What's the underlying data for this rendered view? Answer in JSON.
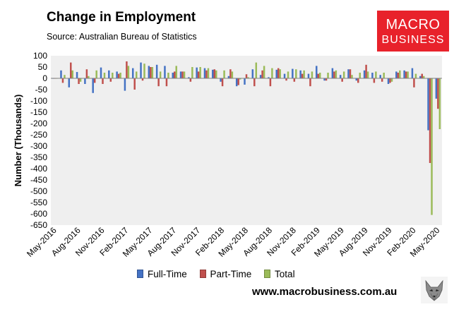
{
  "header": {
    "title": "Change in Employment",
    "subtitle": "Source: Australian Bureau of Statistics"
  },
  "logo": {
    "line1": "MACRO",
    "line2": "BUSINESS"
  },
  "footer": {
    "website": "www.macrobusiness.com.au"
  },
  "colors": {
    "full_time": "#4472c4",
    "part_time": "#c0504d",
    "total": "#9bbb59",
    "plot_bg": "#efefef",
    "brand": "#e8222b"
  },
  "legend": [
    {
      "label": "Full-Time",
      "color": "#4472c4"
    },
    {
      "label": "Part-Time",
      "color": "#c0504d"
    },
    {
      "label": "Total",
      "color": "#9bbb59"
    }
  ],
  "chart_data": {
    "type": "bar",
    "title": "Change in Employment",
    "ylabel": "Number (Thousands)",
    "xlabel": "",
    "ylim": [
      -650,
      100
    ],
    "yticks": [
      100,
      50,
      0,
      -50,
      -100,
      -150,
      -200,
      -250,
      -300,
      -350,
      -400,
      -450,
      -500,
      -550,
      -600,
      -650
    ],
    "grid": false,
    "legend_position": "bottom",
    "x_tick_labels": [
      "May-2016",
      "Aug-2016",
      "Nov-2016",
      "Feb-2017",
      "May-2017",
      "Aug-2017",
      "Nov-2017",
      "Feb-2018",
      "May-2018",
      "Aug-2018",
      "Nov-2018",
      "Feb-2019",
      "May-2019",
      "Aug-2019",
      "Nov-2019",
      "Feb-2020",
      "May-2020"
    ],
    "categories": [
      "May-2016",
      "Jun-2016",
      "Jul-2016",
      "Aug-2016",
      "Sep-2016",
      "Oct-2016",
      "Nov-2016",
      "Dec-2016",
      "Jan-2017",
      "Feb-2017",
      "Mar-2017",
      "Apr-2017",
      "May-2017",
      "Jun-2017",
      "Jul-2017",
      "Aug-2017",
      "Sep-2017",
      "Oct-2017",
      "Nov-2017",
      "Dec-2017",
      "Jan-2018",
      "Feb-2018",
      "Mar-2018",
      "Apr-2018",
      "May-2018",
      "Jun-2018",
      "Jul-2018",
      "Aug-2018",
      "Sep-2018",
      "Oct-2018",
      "Nov-2018",
      "Dec-2018",
      "Jan-2019",
      "Feb-2019",
      "Mar-2019",
      "Apr-2019",
      "May-2019",
      "Jun-2019",
      "Jul-2019",
      "Aug-2019",
      "Sep-2019",
      "Oct-2019",
      "Nov-2019",
      "Dec-2019",
      "Jan-2020",
      "Feb-2020",
      "Mar-2020",
      "Apr-2020",
      "May-2020"
    ],
    "series": [
      {
        "name": "Full-Time",
        "color": "#4472c4",
        "values": [
          -2,
          35,
          -40,
          28,
          -25,
          -65,
          48,
          35,
          30,
          -55,
          45,
          70,
          55,
          60,
          55,
          25,
          30,
          5,
          48,
          45,
          38,
          -15,
          10,
          -35,
          -28,
          40,
          15,
          5,
          38,
          20,
          42,
          35,
          20,
          55,
          -10,
          45,
          15,
          40,
          -10,
          35,
          25,
          15,
          -25,
          30,
          35,
          45,
          10,
          -230,
          -90
        ]
      },
      {
        "name": "Part-Time",
        "color": "#c0504d",
        "values": [
          0,
          -20,
          70,
          -25,
          40,
          -20,
          -25,
          -15,
          20,
          75,
          -50,
          -10,
          50,
          -35,
          -35,
          30,
          30,
          -15,
          30,
          35,
          40,
          -35,
          40,
          -30,
          18,
          -35,
          35,
          -35,
          45,
          -10,
          -15,
          20,
          -35,
          20,
          -10,
          30,
          -15,
          40,
          -20,
          60,
          -20,
          -15,
          -20,
          25,
          30,
          -40,
          20,
          -375,
          -135
        ]
      },
      {
        "name": "Total",
        "color": "#9bbb59",
        "values": [
          0,
          15,
          35,
          -15,
          10,
          35,
          25,
          25,
          25,
          55,
          30,
          65,
          50,
          30,
          25,
          55,
          30,
          50,
          50,
          45,
          35,
          35,
          30,
          -5,
          5,
          70,
          55,
          45,
          40,
          30,
          40,
          35,
          30,
          25,
          25,
          35,
          30,
          15,
          25,
          30,
          30,
          25,
          -15,
          35,
          30,
          20,
          10,
          -605,
          -225
        ]
      }
    ]
  }
}
